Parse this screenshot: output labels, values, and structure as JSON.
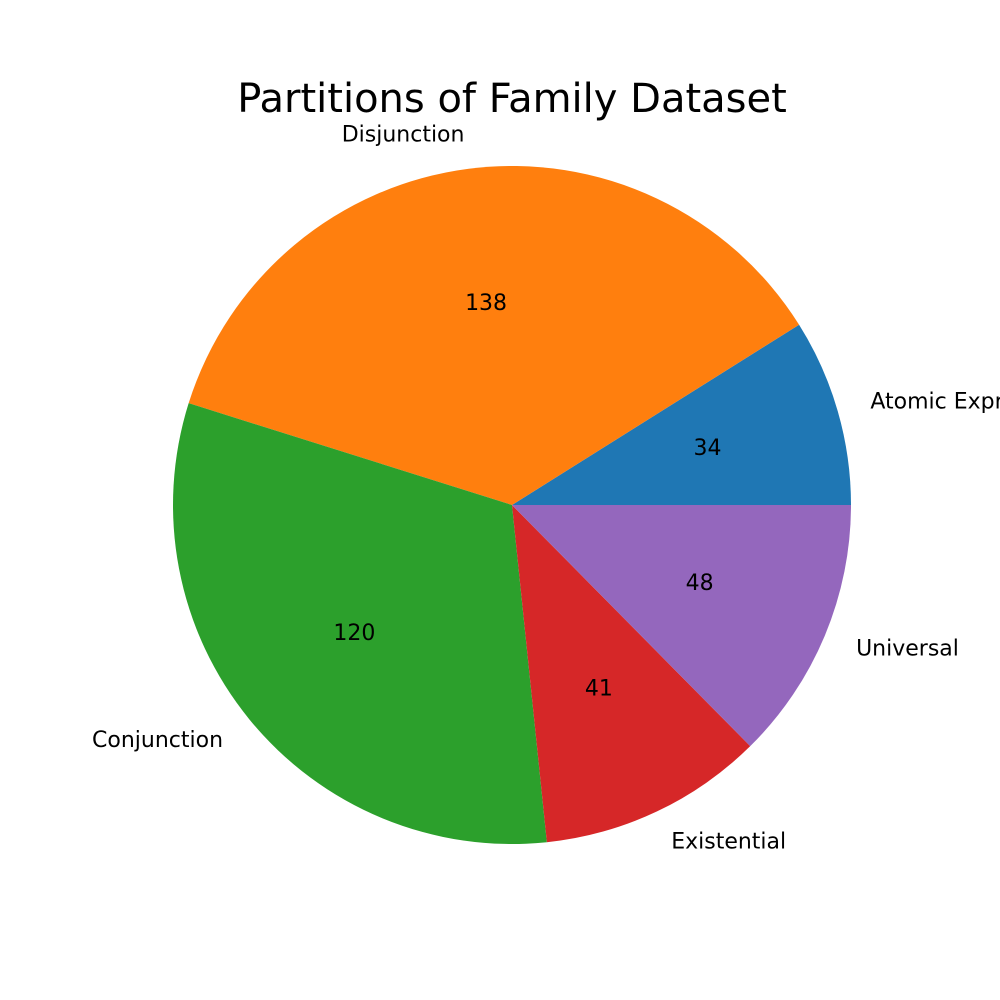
{
  "chart_data": {
    "type": "pie",
    "title": "Partitions of Family Dataset",
    "categories": [
      "Atomic Expression",
      "Disjunction",
      "Conjunction",
      "Existential",
      "Universal"
    ],
    "values": [
      34,
      138,
      120,
      41,
      48
    ],
    "colors": [
      "#1f77b4",
      "#ff7f0e",
      "#2ca02c",
      "#d62728",
      "#9467bd"
    ]
  }
}
